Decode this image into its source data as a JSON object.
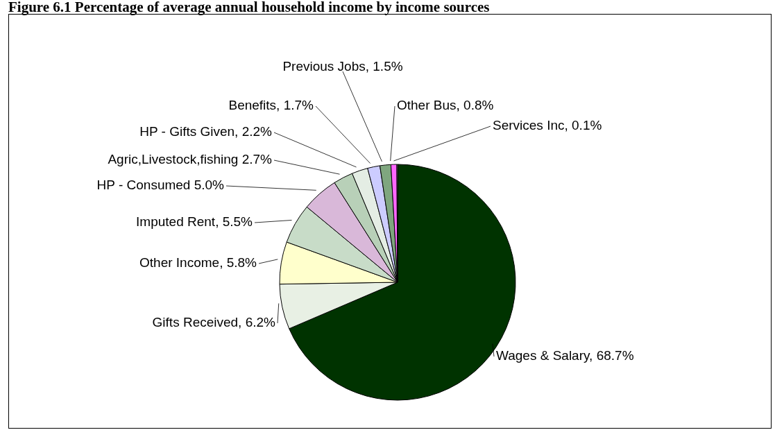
{
  "chart_data": {
    "type": "pie",
    "title": "Figure 6.1 Percentage of average annual household income by income sources",
    "categories": [
      "Wages & Salary",
      "Gifts Received",
      "Other Income",
      "Imputed Rent",
      "HP - Consumed",
      "Agric,Livestock,fishing",
      "HP - Gifts Given",
      "Benefits",
      "Previous Jobs",
      "Other Bus",
      "Services Inc"
    ],
    "values": [
      68.7,
      6.2,
      5.8,
      5.5,
      5.0,
      2.7,
      2.2,
      1.7,
      1.5,
      0.8,
      0.1
    ],
    "value_labels": [
      "68.7%",
      "6.2%",
      "5.8%",
      "5.5%",
      "5.0%",
      "2.7%",
      "2.2%",
      "1.7%",
      "1.5%",
      "0.8%",
      "0.1%"
    ],
    "colors": [
      "#003300",
      "#e8f0e4",
      "#ffffcc",
      "#c8dcc8",
      "#d9b8d9",
      "#b8d0b8",
      "#e4ede4",
      "#ccccff",
      "#7fa67f",
      "#ff66ff",
      "#ffccff"
    ],
    "legend": false
  }
}
